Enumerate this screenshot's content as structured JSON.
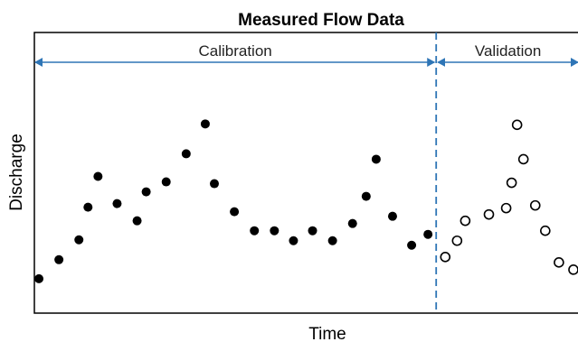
{
  "chart_data": {
    "type": "scatter",
    "title": "Measured Flow Data",
    "xlabel": "Time",
    "ylabel": "Discharge",
    "xlim": [
      0,
      600
    ],
    "ylim": [
      0,
      310
    ],
    "x_ticks": false,
    "y_ticks": false,
    "grid": false,
    "split": {
      "x": 442,
      "style": "dashed",
      "color": "#2e75b6"
    },
    "sections": [
      {
        "label": "Calibration",
        "range": [
          0,
          442
        ]
      },
      {
        "label": "Validation",
        "range": [
          442,
          600
        ]
      }
    ],
    "series": [
      {
        "marker": "filled-circle",
        "color": "#000000",
        "points": [
          {
            "x": 5,
            "y": 38
          },
          {
            "x": 27,
            "y": 59
          },
          {
            "x": 49,
            "y": 81
          },
          {
            "x": 59,
            "y": 117
          },
          {
            "x": 70,
            "y": 151
          },
          {
            "x": 91,
            "y": 121
          },
          {
            "x": 113,
            "y": 102
          },
          {
            "x": 123,
            "y": 134
          },
          {
            "x": 145,
            "y": 145
          },
          {
            "x": 167,
            "y": 176
          },
          {
            "x": 188,
            "y": 209
          },
          {
            "x": 198,
            "y": 143
          },
          {
            "x": 220,
            "y": 112
          },
          {
            "x": 242,
            "y": 91
          },
          {
            "x": 264,
            "y": 91
          },
          {
            "x": 285,
            "y": 80
          },
          {
            "x": 306,
            "y": 91
          },
          {
            "x": 328,
            "y": 80
          },
          {
            "x": 350,
            "y": 99
          },
          {
            "x": 365,
            "y": 129
          },
          {
            "x": 376,
            "y": 170
          },
          {
            "x": 394,
            "y": 107
          },
          {
            "x": 415,
            "y": 75
          },
          {
            "x": 433,
            "y": 87
          }
        ]
      },
      {
        "marker": "open-circle",
        "color": "#000000",
        "points": [
          {
            "x": 452,
            "y": 62
          },
          {
            "x": 465,
            "y": 80
          },
          {
            "x": 474,
            "y": 102
          },
          {
            "x": 500,
            "y": 109
          },
          {
            "x": 519,
            "y": 116
          },
          {
            "x": 525,
            "y": 144
          },
          {
            "x": 531,
            "y": 208
          },
          {
            "x": 538,
            "y": 170
          },
          {
            "x": 551,
            "y": 119
          },
          {
            "x": 562,
            "y": 91
          },
          {
            "x": 577,
            "y": 56
          },
          {
            "x": 593,
            "y": 48
          }
        ]
      }
    ]
  },
  "colors": {
    "axis": "#000000",
    "arrow": "#2e75b6",
    "split_line": "#2e75b6",
    "marker": "#000000"
  }
}
